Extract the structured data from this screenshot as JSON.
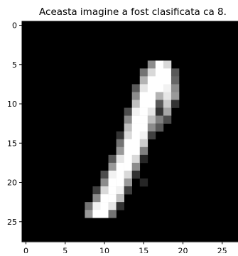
{
  "chart_data": {
    "type": "heatmap",
    "title": "Aceasta imagine a fost clasificata ca 8.",
    "xlabel": "",
    "ylabel": "",
    "grid": false,
    "colormap": "gray",
    "rows": 28,
    "cols": 28,
    "xlim": [
      -0.5,
      27.5
    ],
    "ylim": [
      27.5,
      -0.5
    ],
    "x_ticks": [
      0,
      5,
      10,
      15,
      20,
      25
    ],
    "y_ticks": [
      0,
      5,
      10,
      15,
      20,
      25
    ],
    "pixels": [
      {
        "r": 5,
        "c": 16,
        "v": 0.55
      },
      {
        "r": 5,
        "c": 17,
        "v": 1.0
      },
      {
        "r": 5,
        "c": 18,
        "v": 0.85
      },
      {
        "r": 6,
        "c": 15,
        "v": 0.45
      },
      {
        "r": 6,
        "c": 16,
        "v": 0.85
      },
      {
        "r": 6,
        "c": 17,
        "v": 1.0
      },
      {
        "r": 6,
        "c": 18,
        "v": 1.0
      },
      {
        "r": 6,
        "c": 19,
        "v": 0.35
      },
      {
        "r": 7,
        "c": 15,
        "v": 0.7
      },
      {
        "r": 7,
        "c": 16,
        "v": 1.0
      },
      {
        "r": 7,
        "c": 17,
        "v": 1.0
      },
      {
        "r": 7,
        "c": 18,
        "v": 1.0
      },
      {
        "r": 7,
        "c": 19,
        "v": 0.4
      },
      {
        "r": 8,
        "c": 14,
        "v": 0.35
      },
      {
        "r": 8,
        "c": 15,
        "v": 0.9
      },
      {
        "r": 8,
        "c": 16,
        "v": 1.0
      },
      {
        "r": 8,
        "c": 17,
        "v": 1.0
      },
      {
        "r": 8,
        "c": 18,
        "v": 0.95
      },
      {
        "r": 8,
        "c": 19,
        "v": 0.55
      },
      {
        "r": 9,
        "c": 14,
        "v": 0.55
      },
      {
        "r": 9,
        "c": 15,
        "v": 1.0
      },
      {
        "r": 9,
        "c": 16,
        "v": 1.0
      },
      {
        "r": 9,
        "c": 17,
        "v": 0.7
      },
      {
        "r": 9,
        "c": 18,
        "v": 0.9
      },
      {
        "r": 9,
        "c": 19,
        "v": 0.6
      },
      {
        "r": 10,
        "c": 14,
        "v": 0.75
      },
      {
        "r": 10,
        "c": 15,
        "v": 1.0
      },
      {
        "r": 10,
        "c": 16,
        "v": 1.0
      },
      {
        "r": 10,
        "c": 17,
        "v": 0.35
      },
      {
        "r": 10,
        "c": 18,
        "v": 0.8
      },
      {
        "r": 10,
        "c": 19,
        "v": 0.2
      },
      {
        "r": 11,
        "c": 13,
        "v": 0.3
      },
      {
        "r": 11,
        "c": 14,
        "v": 0.95
      },
      {
        "r": 11,
        "c": 15,
        "v": 1.0
      },
      {
        "r": 11,
        "c": 16,
        "v": 0.9
      },
      {
        "r": 11,
        "c": 17,
        "v": 0.2
      },
      {
        "r": 11,
        "c": 18,
        "v": 0.65
      },
      {
        "r": 12,
        "c": 13,
        "v": 0.55
      },
      {
        "r": 12,
        "c": 14,
        "v": 1.0
      },
      {
        "r": 12,
        "c": 15,
        "v": 1.0
      },
      {
        "r": 12,
        "c": 16,
        "v": 0.75
      },
      {
        "r": 12,
        "c": 17,
        "v": 0.5
      },
      {
        "r": 12,
        "c": 18,
        "v": 0.3
      },
      {
        "r": 13,
        "c": 13,
        "v": 0.75
      },
      {
        "r": 13,
        "c": 14,
        "v": 1.0
      },
      {
        "r": 13,
        "c": 15,
        "v": 1.0
      },
      {
        "r": 13,
        "c": 16,
        "v": 0.55
      },
      {
        "r": 13,
        "c": 17,
        "v": 0.35
      },
      {
        "r": 14,
        "c": 12,
        "v": 0.2
      },
      {
        "r": 14,
        "c": 13,
        "v": 0.85
      },
      {
        "r": 14,
        "c": 14,
        "v": 1.0
      },
      {
        "r": 14,
        "c": 15,
        "v": 0.95
      },
      {
        "r": 14,
        "c": 16,
        "v": 0.25
      },
      {
        "r": 15,
        "c": 12,
        "v": 0.45
      },
      {
        "r": 15,
        "c": 13,
        "v": 1.0
      },
      {
        "r": 15,
        "c": 14,
        "v": 1.0
      },
      {
        "r": 15,
        "c": 15,
        "v": 0.8
      },
      {
        "r": 16,
        "c": 12,
        "v": 0.6
      },
      {
        "r": 16,
        "c": 13,
        "v": 1.0
      },
      {
        "r": 16,
        "c": 14,
        "v": 1.0
      },
      {
        "r": 16,
        "c": 15,
        "v": 0.5
      },
      {
        "r": 17,
        "c": 11,
        "v": 0.35
      },
      {
        "r": 17,
        "c": 12,
        "v": 0.9
      },
      {
        "r": 17,
        "c": 13,
        "v": 1.0
      },
      {
        "r": 17,
        "c": 14,
        "v": 0.85
      },
      {
        "r": 17,
        "c": 15,
        "v": 0.15
      },
      {
        "r": 18,
        "c": 11,
        "v": 0.6
      },
      {
        "r": 18,
        "c": 12,
        "v": 1.0
      },
      {
        "r": 18,
        "c": 13,
        "v": 1.0
      },
      {
        "r": 18,
        "c": 14,
        "v": 0.55
      },
      {
        "r": 19,
        "c": 10,
        "v": 0.3
      },
      {
        "r": 19,
        "c": 11,
        "v": 0.95
      },
      {
        "r": 19,
        "c": 12,
        "v": 1.0
      },
      {
        "r": 19,
        "c": 13,
        "v": 0.85
      },
      {
        "r": 19,
        "c": 14,
        "v": 0.2
      },
      {
        "r": 20,
        "c": 10,
        "v": 0.55
      },
      {
        "r": 20,
        "c": 11,
        "v": 1.0
      },
      {
        "r": 20,
        "c": 12,
        "v": 1.0
      },
      {
        "r": 20,
        "c": 13,
        "v": 0.6
      },
      {
        "r": 20,
        "c": 15,
        "v": 0.15
      },
      {
        "r": 21,
        "c": 9,
        "v": 0.25
      },
      {
        "r": 21,
        "c": 10,
        "v": 0.85
      },
      {
        "r": 21,
        "c": 11,
        "v": 1.0
      },
      {
        "r": 21,
        "c": 12,
        "v": 0.95
      },
      {
        "r": 21,
        "c": 13,
        "v": 0.25
      },
      {
        "r": 22,
        "c": 9,
        "v": 0.55
      },
      {
        "r": 22,
        "c": 10,
        "v": 1.0
      },
      {
        "r": 22,
        "c": 11,
        "v": 1.0
      },
      {
        "r": 22,
        "c": 12,
        "v": 0.75
      },
      {
        "r": 23,
        "c": 8,
        "v": 0.45
      },
      {
        "r": 23,
        "c": 9,
        "v": 0.95
      },
      {
        "r": 23,
        "c": 10,
        "v": 1.0
      },
      {
        "r": 23,
        "c": 11,
        "v": 0.9
      },
      {
        "r": 23,
        "c": 12,
        "v": 0.2
      },
      {
        "r": 24,
        "c": 8,
        "v": 0.6
      },
      {
        "r": 24,
        "c": 9,
        "v": 1.0
      },
      {
        "r": 24,
        "c": 10,
        "v": 1.0
      },
      {
        "r": 24,
        "c": 11,
        "v": 0.45
      }
    ]
  }
}
